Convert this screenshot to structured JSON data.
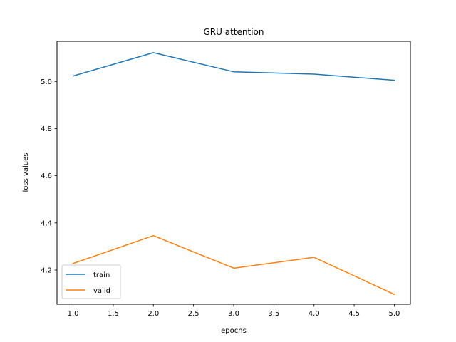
{
  "chart_data": {
    "type": "line",
    "title": "GRU attention",
    "xlabel": "epochs",
    "ylabel": "loss values",
    "x": [
      1,
      2,
      3,
      4,
      5
    ],
    "xlim": [
      0.8,
      5.2
    ],
    "ylim": [
      4.055,
      5.17
    ],
    "xticks": [
      1.0,
      1.5,
      2.0,
      2.5,
      3.0,
      3.5,
      4.0,
      4.5,
      5.0
    ],
    "xtick_labels": [
      "1.0",
      "1.5",
      "2.0",
      "2.5",
      "3.0",
      "3.5",
      "4.0",
      "4.5",
      "5.0"
    ],
    "yticks": [
      4.2,
      4.4,
      4.6,
      4.8,
      5.0
    ],
    "ytick_labels": [
      "4.2",
      "4.4",
      "4.6",
      "4.8",
      "5.0"
    ],
    "grid": false,
    "legend_position": "lower-left",
    "series": [
      {
        "name": "train",
        "color": "#1f77b4",
        "values": [
          5.023,
          5.122,
          5.041,
          5.031,
          5.005
        ]
      },
      {
        "name": "valid",
        "color": "#ff7f0e",
        "values": [
          4.228,
          4.346,
          4.208,
          4.254,
          4.097
        ]
      }
    ]
  }
}
